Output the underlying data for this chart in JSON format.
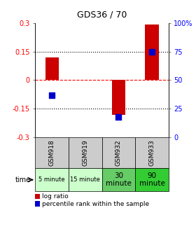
{
  "title": "GDS36 / 70",
  "samples": [
    "GSM918",
    "GSM919",
    "GSM932",
    "GSM933"
  ],
  "time_labels": [
    "5 minute",
    "15 minute",
    "30\nminute",
    "90\nminute"
  ],
  "time_bg_colors": [
    "#ccffcc",
    "#ccffcc",
    "#66cc66",
    "#33cc33"
  ],
  "log_ratios": [
    0.12,
    0.0,
    -0.18,
    0.29
  ],
  "percentile_ranks": [
    37,
    null,
    18,
    75
  ],
  "bar_color": "#cc0000",
  "dot_color": "#0000cc",
  "ylim_left": [
    -0.3,
    0.3
  ],
  "ylim_right": [
    0,
    100
  ],
  "yticks_left": [
    -0.3,
    -0.15,
    0,
    0.15,
    0.3
  ],
  "yticks_right": [
    0,
    25,
    50,
    75,
    100
  ],
  "ytick_labels_left": [
    "-0.3",
    "-0.15",
    "0",
    "0.15",
    "0.3"
  ],
  "ytick_labels_right": [
    "0",
    "25",
    "50",
    "75",
    "100%"
  ],
  "hlines": [
    -0.15,
    0,
    0.15
  ],
  "hline_styles": [
    "dotted",
    "dashed",
    "dotted"
  ],
  "hline_colors": [
    "black",
    "red",
    "black"
  ],
  "bar_width": 0.4,
  "dot_size": 40,
  "label_log": "log ratio",
  "label_pct": "percentile rank within the sample",
  "header_bg": "#cccccc",
  "time_label": "time"
}
